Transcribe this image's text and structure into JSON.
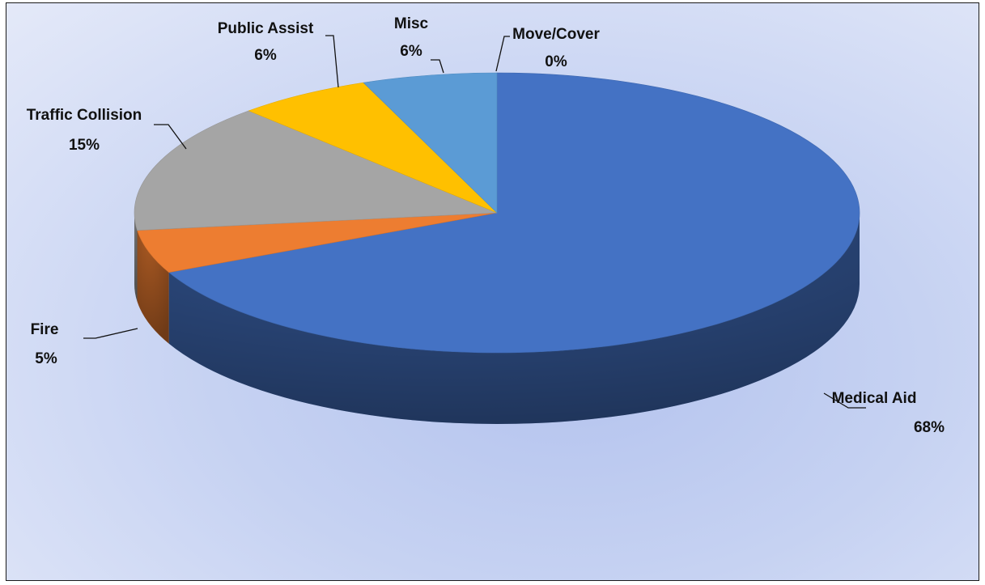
{
  "chart_data": {
    "type": "pie",
    "style": "3d",
    "legend": "none",
    "slices": [
      {
        "label": "Medical Aid",
        "value": 68,
        "value_label": "68%",
        "color": "#4472C4"
      },
      {
        "label": "Fire",
        "value": 5,
        "value_label": "5%",
        "color": "#ED7D31"
      },
      {
        "label": "Traffic Collision",
        "value": 15,
        "value_label": "15%",
        "color": "#A5A5A5"
      },
      {
        "label": "Public Assist",
        "value": 6,
        "value_label": "6%",
        "color": "#FFC000"
      },
      {
        "label": "Misc",
        "value": 6,
        "value_label": "6%",
        "color": "#5B9BD5"
      },
      {
        "label": "Move/Cover",
        "value": 0,
        "value_label": "0%",
        "color": "#70AD47"
      }
    ]
  }
}
